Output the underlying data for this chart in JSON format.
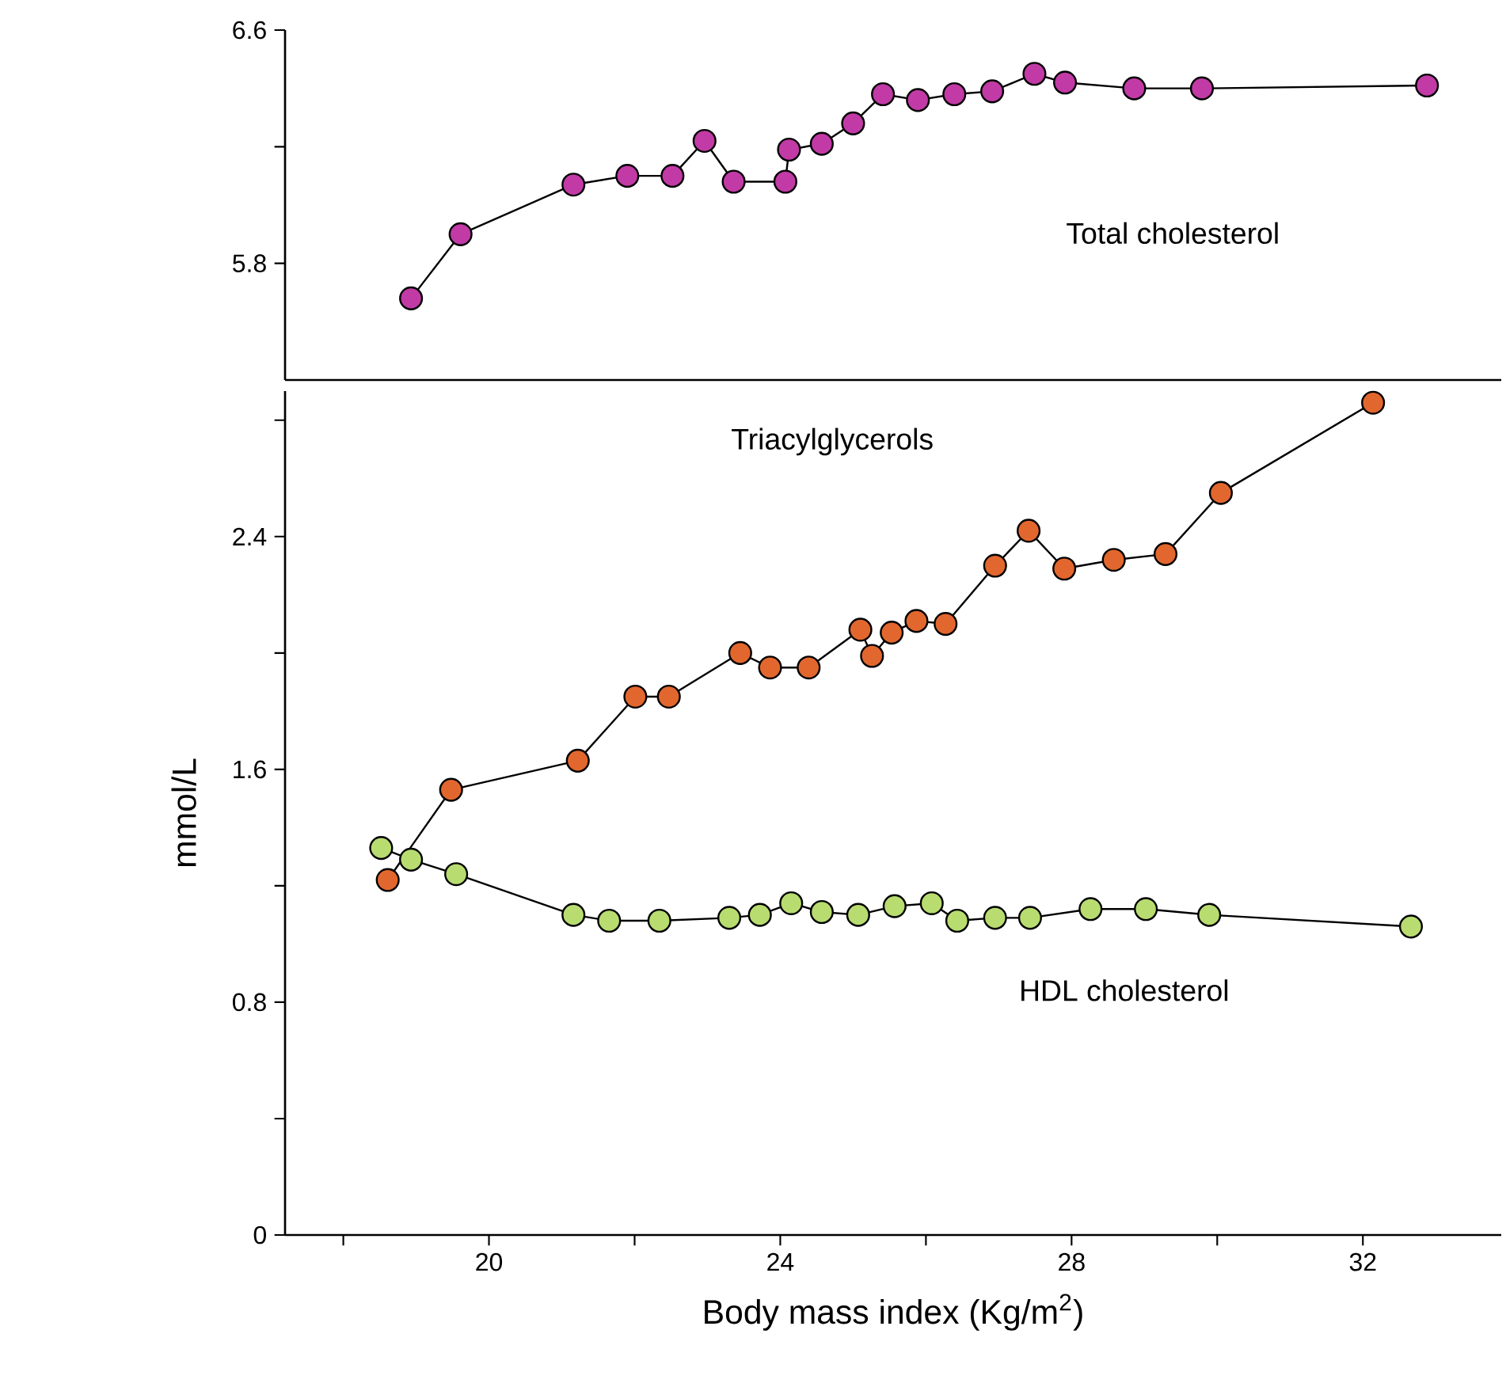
{
  "chart_data": [
    {
      "type": "line",
      "marker": "circle",
      "tick_labels": "y",
      "xlim": [
        17.2,
        33.9
      ],
      "ylim": [
        5.4,
        6.6
      ],
      "yticks": [
        5.8,
        {
          "value": 6.2,
          "label": null
        },
        6.6
      ],
      "series": [
        {
          "color": "#c23aa6",
          "x": [
            18.93,
            19.61,
            21.16,
            21.9,
            22.52,
            22.96,
            23.36,
            24.07,
            24.12,
            24.57,
            25.0,
            25.41,
            25.89,
            26.39,
            26.91,
            27.49,
            27.91,
            28.86,
            29.79,
            32.88
          ],
          "values": [
            5.68,
            5.9,
            6.07,
            6.1,
            6.1,
            6.22,
            6.08,
            6.08,
            6.19,
            6.21,
            6.28,
            6.38,
            6.36,
            6.38,
            6.39,
            6.45,
            6.42,
            6.4,
            6.4,
            6.41
          ]
        }
      ],
      "annotations": [
        "Total cholesterol"
      ]
    },
    {
      "type": "line",
      "marker": "circle",
      "xlim": [
        17.2,
        33.9
      ],
      "ylim": [
        0,
        2.9
      ],
      "xlabel": "Body mass index (Kg/m$^{2}$)",
      "ylabel": "mmol/L",
      "xticks": [
        {
          "value": 18,
          "label": null
        },
        {
          "value": 20,
          "label": "20"
        },
        {
          "value": 22,
          "label": null
        },
        {
          "value": 24,
          "label": "24"
        },
        {
          "value": 26,
          "label": null
        },
        {
          "value": 28,
          "label": "28"
        },
        {
          "value": 30,
          "label": null
        },
        {
          "value": 32,
          "label": "32"
        }
      ],
      "yticks": [
        0,
        {
          "value": 0.4,
          "label": null
        },
        0.8,
        {
          "value": 1.2,
          "label": null
        },
        1.6,
        {
          "value": 2.0,
          "label": null
        },
        2.4,
        {
          "value": 2.8,
          "label": null
        }
      ],
      "series": [
        {
          "color": "#e2672e",
          "x": [
            18.61,
            19.48,
            21.22,
            22.01,
            22.47,
            23.45,
            23.86,
            24.39,
            25.1,
            25.26,
            25.53,
            25.87,
            26.27,
            26.95,
            27.41,
            27.9,
            28.58,
            29.29,
            30.05,
            32.14
          ],
          "values": [
            1.22,
            1.53,
            1.63,
            1.85,
            1.85,
            2.0,
            1.95,
            1.95,
            2.08,
            1.99,
            2.07,
            2.11,
            2.1,
            2.3,
            2.42,
            2.29,
            2.32,
            2.34,
            2.55,
            2.86
          ]
        },
        {
          "color": "#b8dc70",
          "x": [
            18.52,
            18.93,
            19.55,
            21.16,
            21.65,
            22.34,
            23.3,
            23.72,
            24.15,
            24.57,
            25.07,
            25.57,
            26.08,
            26.43,
            26.95,
            27.43,
            28.26,
            29.02,
            29.89,
            32.66
          ],
          "values": [
            1.33,
            1.29,
            1.24,
            1.1,
            1.08,
            1.08,
            1.09,
            1.1,
            1.14,
            1.11,
            1.1,
            1.13,
            1.14,
            1.08,
            1.09,
            1.09,
            1.12,
            1.12,
            1.1,
            1.06
          ]
        }
      ],
      "annotations": [
        "Triacylglycerols",
        "HDL cholesterol"
      ]
    }
  ]
}
